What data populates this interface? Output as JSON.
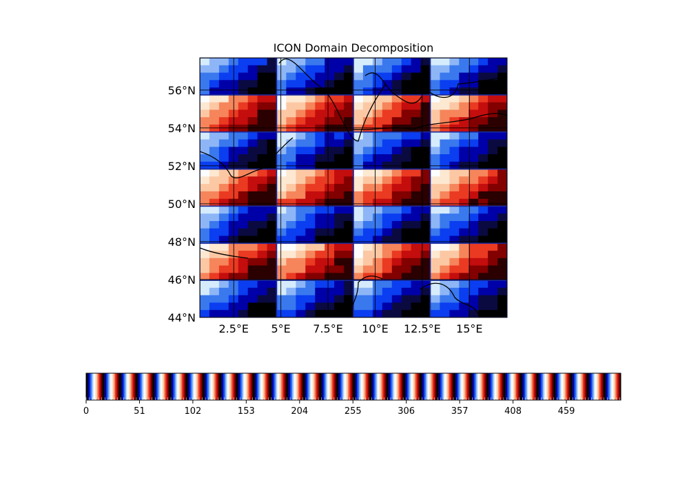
{
  "title": "ICON Domain Decomposition",
  "colors": {
    "bluered": [
      "#000000",
      "#0a0a40",
      "#0000a8",
      "#0a3ef0",
      "#3a78ee",
      "#8eb6f6",
      "#d6ecfc",
      "#fbfdff",
      "#fde8d2",
      "#fcc8a4",
      "#f6855b",
      "#ea3a22",
      "#c40d0d",
      "#820000",
      "#2a0000"
    ]
  },
  "map": {
    "lon_range": [
      0.7,
      17.0
    ],
    "lat_range": [
      44.0,
      57.7
    ],
    "lon_ticks": [
      {
        "value": 2.5,
        "label": "2.5°E"
      },
      {
        "value": 5.0,
        "label": "5°E"
      },
      {
        "value": 7.5,
        "label": "7.5°E"
      },
      {
        "value": 10.0,
        "label": "10°E"
      },
      {
        "value": 12.5,
        "label": "12.5°E"
      },
      {
        "value": 15.0,
        "label": "15°E"
      }
    ],
    "lat_ticks": [
      {
        "value": 44,
        "label": "44°N"
      },
      {
        "value": 46,
        "label": "46°N"
      },
      {
        "value": 48,
        "label": "48°N"
      },
      {
        "value": 50,
        "label": "50°N"
      },
      {
        "value": 52,
        "label": "52°N"
      },
      {
        "value": 54,
        "label": "54°N"
      },
      {
        "value": 56,
        "label": "56°N"
      }
    ],
    "gridlines": true,
    "coastlines": true,
    "block_columns": 4,
    "block_rows": 7
  },
  "colorbar": {
    "orientation": "horizontal",
    "range": [
      0,
      511
    ],
    "tick_values": [
      0,
      51,
      102,
      153,
      204,
      255,
      306,
      357,
      408,
      459
    ],
    "tick_labels": [
      "0",
      "51",
      "102",
      "153",
      "204",
      "255",
      "306",
      "357",
      "408",
      "459"
    ],
    "cycles": 32
  }
}
